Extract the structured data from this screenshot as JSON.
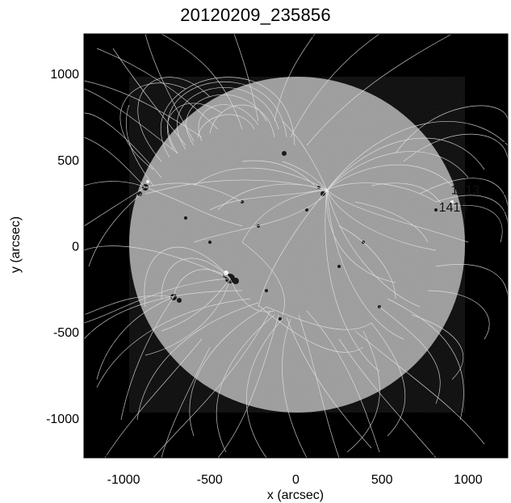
{
  "title": "20120209_235856",
  "xlabel": "x (arcsec)",
  "ylabel": "y (arcsec)",
  "xticks": [
    {
      "value": -1000,
      "label": "-1000"
    },
    {
      "value": -500,
      "label": "-500"
    },
    {
      "value": 0,
      "label": "0"
    },
    {
      "value": 500,
      "label": "500"
    },
    {
      "value": 1000,
      "label": "1000"
    }
  ],
  "yticks": [
    {
      "value": 1000,
      "label": "1000"
    },
    {
      "value": 500,
      "label": "500"
    },
    {
      "value": 0,
      "label": "0"
    },
    {
      "value": -500,
      "label": "-500"
    },
    {
      "value": -1000,
      "label": "-1000"
    }
  ],
  "active_region_labels": [
    {
      "text": "1413",
      "x": 900,
      "y": 300
    },
    {
      "text": "1415",
      "x": 830,
      "y": 200
    }
  ],
  "colors": {
    "background": "#000000",
    "disk": "#9a9a9a",
    "field_lines": "#e6e6e6",
    "frame": "#000000"
  }
}
